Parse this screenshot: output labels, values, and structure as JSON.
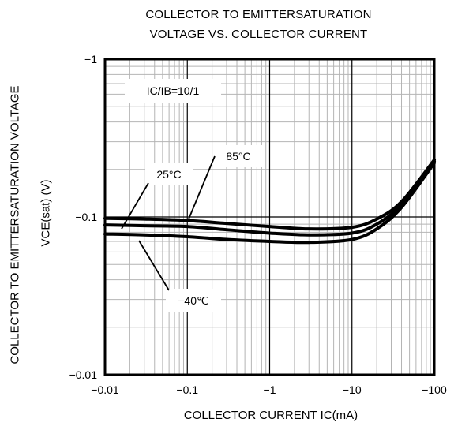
{
  "chart_data": {
    "type": "line",
    "title": "COLLECTOR TO EMITTERSATURATION VOLTAGE VS. COLLECTOR CURRENT",
    "title_lines": [
      "COLLECTOR TO EMITTERSATURATION",
      "VOLTAGE VS. COLLECTOR CURRENT"
    ],
    "xlabel": "COLLECTOR CURRENT  IC(mA)",
    "ylabel_lines": [
      "COLLECTOR TO EMITTERSATURATION VOLTAGE",
      "VCE(sat)   (V)"
    ],
    "x_scale": "log",
    "y_scale": "log",
    "xlim": [
      -0.01,
      -100
    ],
    "ylim": [
      -0.01,
      -1
    ],
    "x_ticks": [
      "-0.01",
      "-0.1",
      "-1",
      "-10",
      "-100"
    ],
    "y_ticks": [
      "-0.01",
      "-0.1",
      "-1"
    ],
    "grid": true,
    "condition": "IC/IB=10/1",
    "series": [
      {
        "name": "85°C",
        "x": [
          -0.01,
          -0.03,
          -0.1,
          -0.3,
          -1,
          -3,
          -10,
          -20,
          -40,
          -100
        ],
        "y": [
          -0.098,
          -0.097,
          -0.095,
          -0.091,
          -0.087,
          -0.084,
          -0.086,
          -0.097,
          -0.125,
          -0.23
        ]
      },
      {
        "name": "25°C",
        "x": [
          -0.01,
          -0.03,
          -0.1,
          -0.3,
          -1,
          -3,
          -10,
          -20,
          -40,
          -100
        ],
        "y": [
          -0.089,
          -0.088,
          -0.087,
          -0.083,
          -0.079,
          -0.077,
          -0.079,
          -0.09,
          -0.12,
          -0.225
        ]
      },
      {
        "name": "-40°C",
        "x": [
          -0.01,
          -0.03,
          -0.1,
          -0.3,
          -1,
          -3,
          -10,
          -20,
          -40,
          -100
        ],
        "y": [
          -0.078,
          -0.077,
          -0.075,
          -0.072,
          -0.07,
          -0.069,
          -0.072,
          -0.084,
          -0.115,
          -0.22
        ]
      }
    ],
    "annotations": [
      "IC/IB=10/1",
      "85°C",
      "25°C",
      "−40℃"
    ]
  }
}
